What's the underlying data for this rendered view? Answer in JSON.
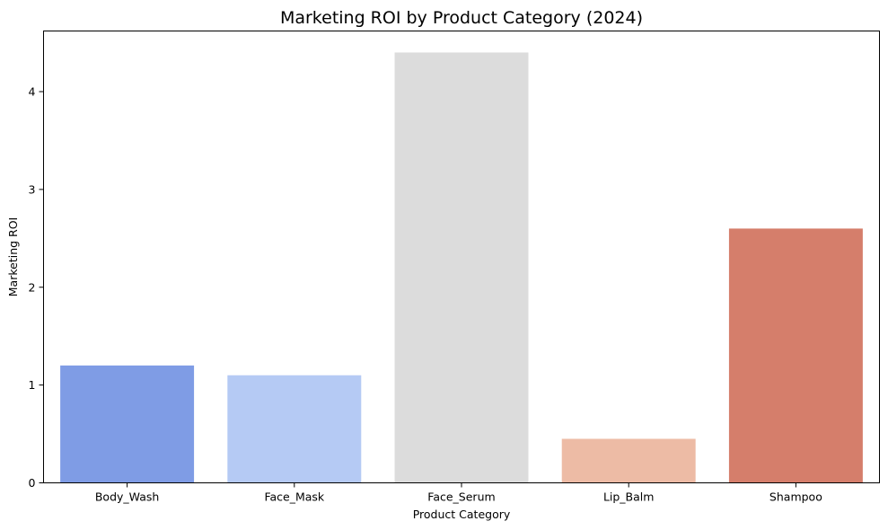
{
  "chart_data": {
    "type": "bar",
    "title": "Marketing ROI by Product Category (2024)",
    "xlabel": "Product Category",
    "ylabel": "Marketing ROI",
    "categories": [
      "Body_Wash",
      "Face_Mask",
      "Face_Serum",
      "Lip_Balm",
      "Shampoo"
    ],
    "values": [
      1.2,
      1.1,
      4.4,
      0.45,
      2.6
    ],
    "colors": [
      "#7f9ce5",
      "#b5caf4",
      "#dcdcdc",
      "#edbba5",
      "#d57e6b"
    ],
    "ylim": [
      0,
      4.62
    ],
    "yticks": [
      0,
      1,
      2,
      3,
      4
    ],
    "grid": false,
    "legend": "none"
  }
}
